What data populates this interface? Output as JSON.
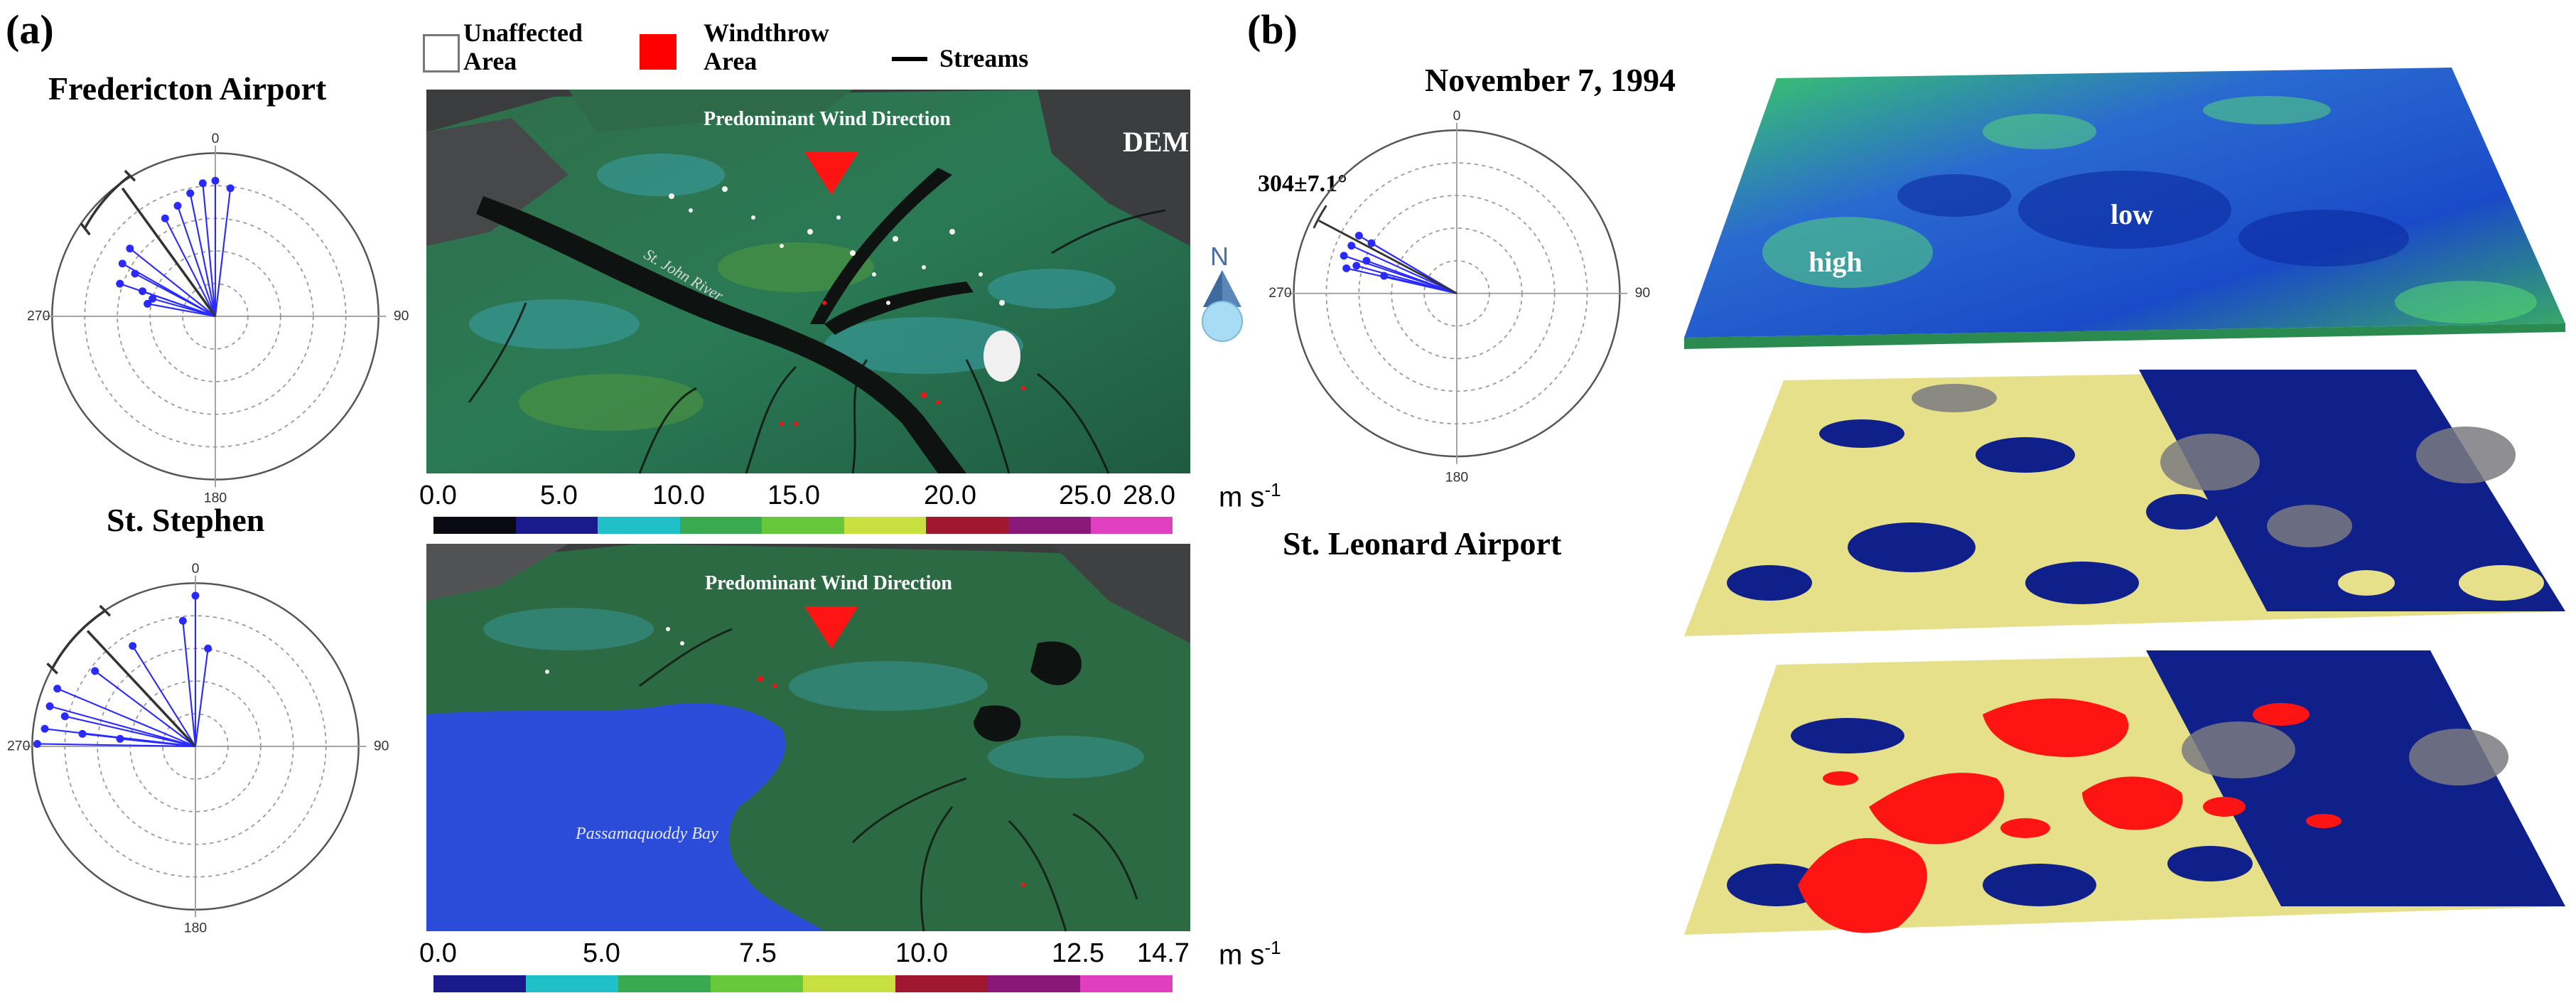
{
  "panel_a": {
    "label": "(a)",
    "station_top": "Fredericton Airport",
    "station_bottom": "St. Stephen",
    "legend": {
      "unaffected": "Unaffected Area",
      "windthrow": "Windthrow Area",
      "streams": "Streams",
      "windthrow_color": "#ff0000"
    },
    "map_top": {
      "wind_label": "Predominant Wind Direction",
      "dem_label": "DEM",
      "river_label": "St. John River"
    },
    "map_bottom": {
      "wind_label": "Predominant Wind Direction",
      "bay_label": "Passamaquoddy Bay"
    },
    "colorbar_top": {
      "ticks": [
        "0.0",
        "5.0",
        "10.0",
        "15.0",
        "20.0",
        "25.0",
        "28.0"
      ],
      "unit": "m s",
      "unit_sup": "-1",
      "colors": [
        "#0a0a12",
        "#1a1a8c",
        "#20c0c8",
        "#3aaa50",
        "#68c83c",
        "#c8e040",
        "#e0e048",
        "#a01830",
        "#8a1878",
        "#e040c0"
      ]
    },
    "colorbar_bottom": {
      "ticks": [
        "0.0",
        "5.0",
        "7.5",
        "10.0",
        "12.5",
        "14.7"
      ],
      "unit": "m s",
      "unit_sup": "-1",
      "colors": [
        "#1a1a8c",
        "#20c0c8",
        "#3aaa50",
        "#68c83c",
        "#c8e040",
        "#e0e048",
        "#a01830",
        "#8a1878",
        "#e040c0"
      ]
    },
    "polar_ticks": {
      "top": "0",
      "right": "90",
      "bottom": "180",
      "left": "270"
    }
  },
  "panel_b": {
    "label": "(b)",
    "date": "November 7, 1994",
    "angle_label": "304±7.1°",
    "compass_letter": "N",
    "station": "St. Leonard Airport",
    "dem_high": "high",
    "dem_low": "low",
    "polar_ticks": {
      "top": "0",
      "right": "90",
      "bottom": "180",
      "left": "270"
    }
  }
}
